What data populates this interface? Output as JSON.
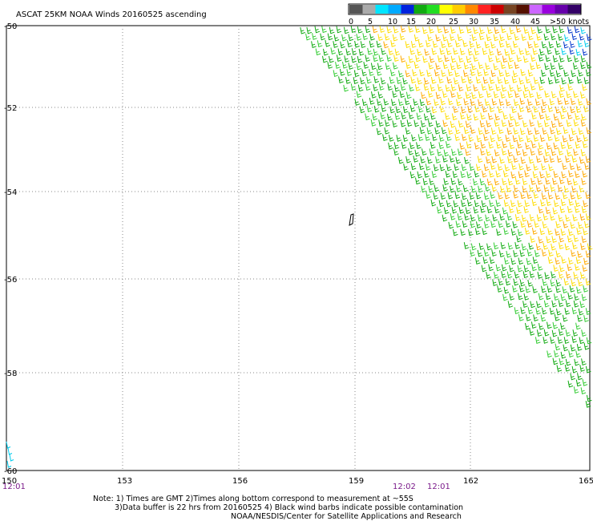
{
  "header": {
    "title": "ASCAT 25KM NOAA Winds 20160525 ascending"
  },
  "legend": {
    "labels": [
      "0",
      "5",
      "10",
      "15",
      "20",
      "25",
      "30",
      "35",
      "40",
      "45",
      ">50 knots"
    ],
    "colors": [
      "#555555",
      "#aaaaaa",
      "#00e5ff",
      "#00aaff",
      "#0022dd",
      "#11aa11",
      "#22dd22",
      "#ffff00",
      "#ffcc00",
      "#ff8800",
      "#ff2222",
      "#cc0000",
      "#774422",
      "#551100",
      "#cc66ff",
      "#9900dd",
      "#6600aa",
      "#330066"
    ]
  },
  "axes": {
    "lat_labels": [
      "-50",
      "-52",
      "-54",
      "-56",
      "-58",
      "-60"
    ],
    "lon_labels": [
      "150",
      "153",
      "156",
      "159",
      "162",
      "165"
    ]
  },
  "times": {
    "left": "12:01",
    "mid1": "12:02",
    "mid2": "12:01"
  },
  "notes": {
    "line1": "Note: 1) Times are GMT 2)Times along bottom correspond to measurement at ~55S",
    "line2": "3)Data buffer is 22 hrs from 20160525 4) Black wind barbs indicate possible contamination",
    "line3": "NOAA/NESDIS/Center for Satellite Applications and Research"
  },
  "map": {
    "swath_colors": {
      "green": "#11aa11",
      "lightgreen": "#33cc33",
      "yellow": "#ffdd00",
      "orange": "#ffaa00",
      "blue": "#0033cc",
      "cyan": "#00ccee"
    }
  }
}
